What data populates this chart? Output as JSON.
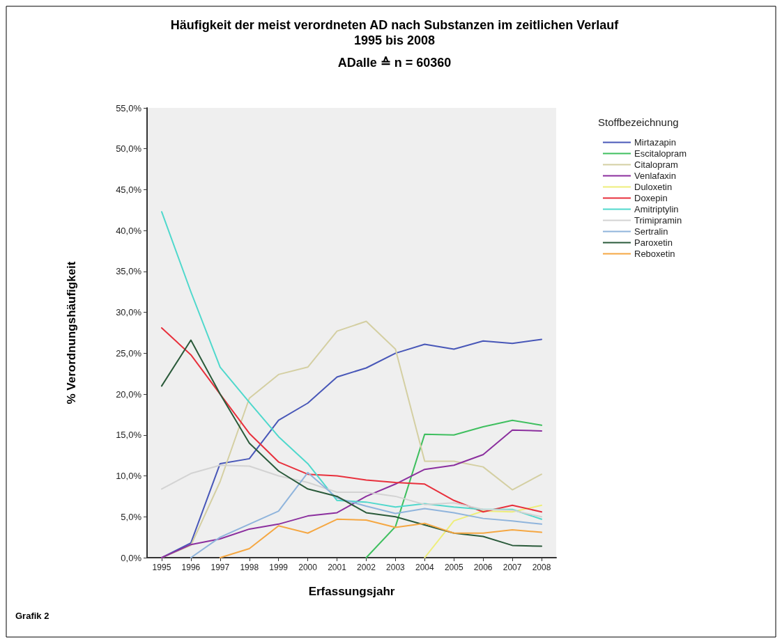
{
  "chart_data": {
    "type": "line",
    "title": "Häufigkeit der meist verordneten AD nach Substanzen im zeitlichen Verlauf\n1995 bis 2008",
    "subtitle": "ADalle ≙ n = 60360",
    "xlabel": "Erfassungsjahr",
    "ylabel": "% Verordnungshäufigkeit",
    "legend_title": "Stoffbezeichnung",
    "legend": "right",
    "grid": false,
    "marker": "none",
    "line_style": "solid",
    "annotations": [
      "Grafik 2"
    ],
    "categories": [
      "1995",
      "1996",
      "1997",
      "1998",
      "1999",
      "2000",
      "2001",
      "2002",
      "2003",
      "2004",
      "2005",
      "2006",
      "2007",
      "2008"
    ],
    "ylim": [
      0,
      55
    ],
    "yticks": [
      {
        "value": 0,
        "label": "0,0%"
      },
      {
        "value": 5,
        "label": "5,0%"
      },
      {
        "value": 10,
        "label": "10,0%"
      },
      {
        "value": 15,
        "label": "15,0%"
      },
      {
        "value": 20,
        "label": "20,0%"
      },
      {
        "value": 25,
        "label": "25,0%"
      },
      {
        "value": 30,
        "label": "30,0%"
      },
      {
        "value": 35,
        "label": "35,0%"
      },
      {
        "value": 40,
        "label": "40,0%"
      },
      {
        "value": 45,
        "label": "45,0%"
      },
      {
        "value": 50,
        "label": "50,0%"
      },
      {
        "value": 55,
        "label": "55,0%"
      }
    ],
    "series": [
      {
        "name": "Mirtazapin",
        "color": "#4857b8",
        "values": [
          0,
          1.8,
          11.5,
          12.1,
          16.8,
          18.9,
          22.1,
          23.2,
          25.0,
          26.1,
          25.5,
          26.5,
          26.2,
          26.7
        ]
      },
      {
        "name": "Escitalopram",
        "color": "#3fbf5f",
        "values": [
          null,
          null,
          null,
          null,
          null,
          null,
          null,
          0,
          3.8,
          15.1,
          15.0,
          16.0,
          16.8,
          16.2
        ]
      },
      {
        "name": "Citalopram",
        "color": "#d4cfa2",
        "values": [
          0,
          1.5,
          9.3,
          19.5,
          22.4,
          23.3,
          27.7,
          28.9,
          25.5,
          11.8,
          11.8,
          11.1,
          8.3,
          10.2
        ]
      },
      {
        "name": "Venlafaxin",
        "color": "#8b2f9e",
        "values": [
          0,
          1.6,
          2.3,
          3.5,
          4.1,
          5.1,
          5.5,
          7.5,
          9.0,
          10.8,
          11.3,
          12.6,
          15.6,
          15.5
        ]
      },
      {
        "name": "Duloxetin",
        "color": "#eeee7a",
        "values": [
          null,
          null,
          null,
          null,
          null,
          null,
          null,
          null,
          null,
          0,
          4.5,
          5.7,
          5.6,
          6.4
        ]
      },
      {
        "name": "Doxepin",
        "color": "#e8303c",
        "values": [
          28.1,
          24.8,
          20.0,
          15.2,
          11.7,
          10.2,
          10.0,
          9.5,
          9.2,
          9.0,
          7.0,
          5.6,
          6.4,
          5.6
        ]
      },
      {
        "name": "Amitriptylin",
        "color": "#4fd8cc",
        "values": [
          42.3,
          32.5,
          23.3,
          19.0,
          14.8,
          11.5,
          7.0,
          6.8,
          6.2,
          6.6,
          6.2,
          5.9,
          5.9,
          4.7
        ]
      },
      {
        "name": "Trimipramin",
        "color": "#d3d3d3",
        "values": [
          8.4,
          10.3,
          11.3,
          11.2,
          10.0,
          9.2,
          8.0,
          8.0,
          7.5,
          6.5,
          6.7,
          5.9,
          5.8,
          5.0
        ]
      },
      {
        "name": "Sertralin",
        "color": "#8fb4dc",
        "values": [
          null,
          0,
          2.5,
          4.1,
          5.7,
          10.4,
          7.3,
          6.3,
          5.4,
          6.0,
          5.5,
          4.8,
          4.5,
          4.1
        ]
      },
      {
        "name": "Paroxetin",
        "color": "#2a5a3a",
        "values": [
          21.0,
          26.6,
          20.0,
          14.0,
          10.6,
          8.4,
          7.5,
          5.5,
          5.0,
          4.0,
          3.0,
          2.6,
          1.5,
          1.4
        ]
      },
      {
        "name": "Reboxetin",
        "color": "#f5a742",
        "values": [
          null,
          null,
          0,
          1.1,
          3.9,
          3.0,
          4.7,
          4.6,
          3.7,
          4.2,
          3.0,
          3.0,
          3.4,
          3.1
        ]
      }
    ]
  }
}
